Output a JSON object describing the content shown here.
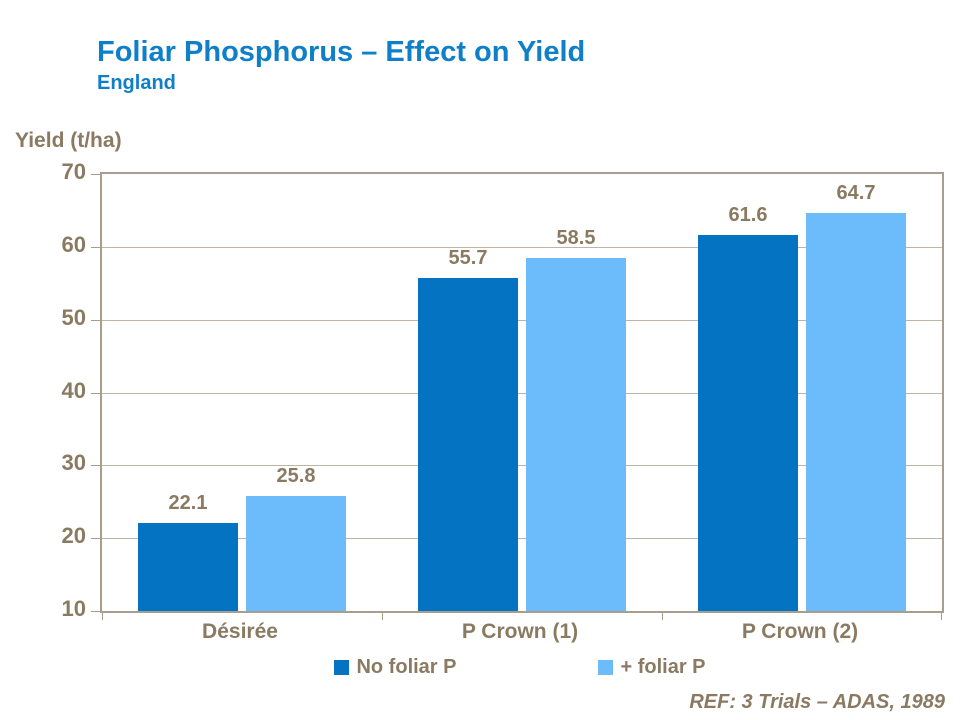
{
  "header": {
    "title": "Foliar Phosphorus – Effect on Yield",
    "subtitle": "England"
  },
  "footer": {
    "reference": "REF: 3 Trials – ADAS, 1989"
  },
  "colors": {
    "title_blue": "#0e7fc8",
    "series_dark_blue": "#0473c2",
    "series_light_blue": "#6cbbfa",
    "axis_text_brown": "#8a7a62",
    "gridline_tan": "#bfb4a3",
    "axis_line_tan": "#a89e90"
  },
  "chart_data": {
    "type": "bar",
    "title": "Foliar Phosphorus – Effect on Yield",
    "subtitle": "England",
    "ylabel": "Yield (t/ha)",
    "xlabel": "",
    "categories": [
      "Désirée",
      "P Crown (1)",
      "P Crown (2)"
    ],
    "series": [
      {
        "name": "No foliar P",
        "color": "#0473c2",
        "values": [
          22.1,
          55.7,
          61.6
        ]
      },
      {
        "name": "+ foliar P",
        "color": "#6cbbfa",
        "values": [
          25.8,
          58.5,
          64.7
        ]
      }
    ],
    "data_labels": true,
    "ylim": [
      10,
      70
    ],
    "yticks": [
      70,
      60,
      50,
      40,
      30,
      20,
      10
    ],
    "grid": true,
    "legend_position": "bottom"
  }
}
